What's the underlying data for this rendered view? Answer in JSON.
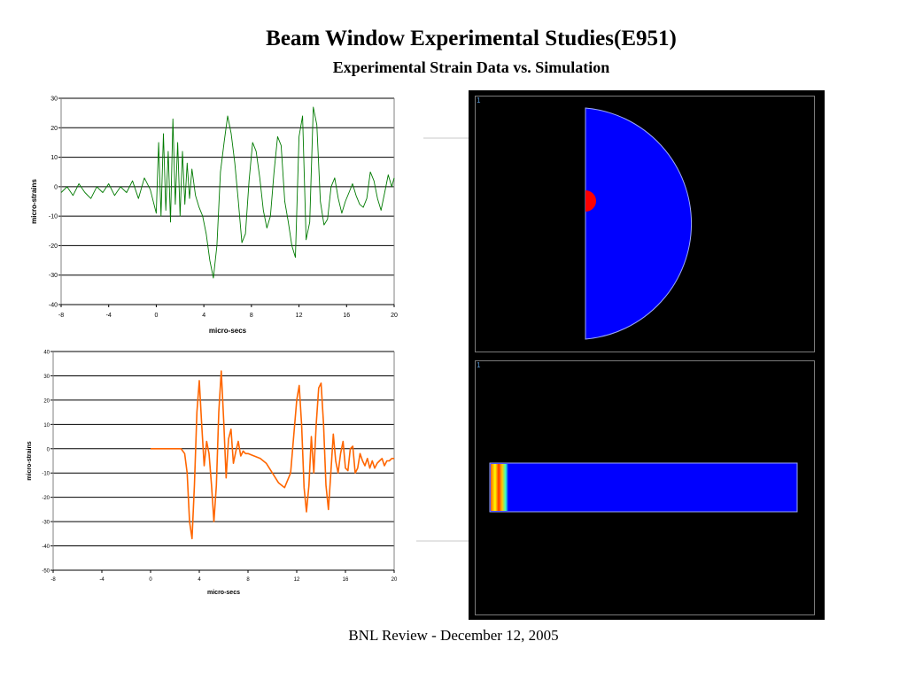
{
  "header": {
    "title": "Beam Window Experimental Studies(E951)",
    "subtitle": "Experimental Strain Data vs. Simulation"
  },
  "footer": {
    "text": "BNL Review - December 12, 2005"
  },
  "simulation": {
    "viewport1_label": "1",
    "viewport2_label": "1",
    "colors": {
      "background": "#000000",
      "body": "#0000ff",
      "hotspot": "#ff0000",
      "frame": "#7a7a7a"
    }
  },
  "chart_data": [
    {
      "type": "line",
      "xlabel": "micro-secs",
      "ylabel": "micro-strains",
      "xlim": [
        -8,
        20
      ],
      "ylim": [
        -40,
        30
      ],
      "xticks": [
        "-8",
        "-4",
        "0",
        "4",
        "8",
        "12",
        "16",
        "20"
      ],
      "yticks": [
        "30",
        "20",
        "10",
        "0",
        "-10",
        "-20",
        "-30",
        "-40"
      ],
      "grid": "horizontal",
      "color": "#007a00",
      "series": [
        {
          "x": [
            -8,
            -7.5,
            -7,
            -6.5,
            -6,
            -5.5,
            -5,
            -4.5,
            -4,
            -3.5,
            -3,
            -2.5,
            -2,
            -1.5,
            -1,
            -0.5,
            0,
            0.2,
            0.4,
            0.6,
            0.8,
            1,
            1.2,
            1.4,
            1.6,
            1.8,
            2,
            2.2,
            2.4,
            2.6,
            2.8,
            3,
            3.3,
            3.6,
            3.9,
            4.2,
            4.5,
            4.8,
            5.1,
            5.4,
            5.7,
            6,
            6.3,
            6.6,
            6.9,
            7.2,
            7.5,
            7.8,
            8.1,
            8.4,
            8.7,
            9,
            9.3,
            9.6,
            9.9,
            10.2,
            10.5,
            10.8,
            11.1,
            11.4,
            11.7,
            12,
            12.3,
            12.6,
            12.9,
            13.2,
            13.5,
            13.8,
            14.1,
            14.4,
            14.7,
            15,
            15.3,
            15.6,
            15.9,
            16.2,
            16.5,
            16.8,
            17.1,
            17.4,
            17.7,
            18,
            18.3,
            18.6,
            18.9,
            19.2,
            19.5,
            19.8,
            20
          ],
          "y": [
            -2,
            0,
            -3,
            1,
            -2,
            -4,
            0,
            -2,
            1,
            -3,
            0,
            -2,
            2,
            -4,
            3,
            -1,
            -9,
            15,
            -10,
            18,
            -8,
            12,
            -12,
            23,
            -6,
            15,
            -10,
            12,
            -6,
            8,
            -4,
            6,
            -3,
            -7,
            -10,
            -16,
            -25,
            -31,
            -20,
            5,
            15,
            24,
            18,
            8,
            -5,
            -19,
            -16,
            2,
            15,
            12,
            3,
            -8,
            -14,
            -10,
            5,
            17,
            14,
            -5,
            -12,
            -20,
            -24,
            17,
            24,
            -18,
            -12,
            27,
            21,
            -5,
            -13,
            -11,
            0,
            3,
            -4,
            -9,
            -5,
            -2,
            1,
            -3,
            -6,
            -7,
            -4,
            5,
            2,
            -4,
            -8,
            -2,
            4,
            0,
            3
          ]
        }
      ]
    },
    {
      "type": "line",
      "xlabel": "micro-secs",
      "ylabel": "micro-strains",
      "xlim": [
        -8,
        20
      ],
      "ylim": [
        -50,
        40
      ],
      "xticks": [
        "-8",
        "-4",
        "0",
        "4",
        "8",
        "12",
        "16",
        "20"
      ],
      "yticks": [
        "40",
        "30",
        "20",
        "10",
        "0",
        "-10",
        "-20",
        "-30",
        "-40",
        "-50"
      ],
      "grid": "horizontal",
      "color": "#ff6600",
      "series": [
        {
          "x": [
            0,
            1,
            2,
            2.5,
            2.8,
            3,
            3.2,
            3.4,
            3.6,
            3.8,
            4,
            4.2,
            4.4,
            4.6,
            4.8,
            5,
            5.2,
            5.4,
            5.6,
            5.8,
            6,
            6.2,
            6.4,
            6.6,
            6.8,
            7,
            7.2,
            7.4,
            7.6,
            7.8,
            8,
            8.5,
            9,
            9.5,
            10,
            10.5,
            11,
            11.5,
            12,
            12.2,
            12.4,
            12.6,
            12.8,
            13,
            13.2,
            13.4,
            13.6,
            13.8,
            14,
            14.2,
            14.4,
            14.6,
            14.8,
            15,
            15.2,
            15.4,
            15.6,
            15.8,
            16,
            16.2,
            16.4,
            16.6,
            16.8,
            17,
            17.2,
            17.4,
            17.6,
            17.8,
            18,
            18.2,
            18.4,
            18.6,
            18.8,
            19,
            19.2,
            19.4,
            19.6,
            19.8,
            20
          ],
          "y": [
            0,
            0,
            0,
            0,
            -2,
            -10,
            -30,
            -37,
            -15,
            15,
            28,
            10,
            -7,
            3,
            -2,
            -15,
            -30,
            -15,
            15,
            32,
            12,
            -12,
            4,
            8,
            -6,
            -1,
            3,
            -3,
            -1,
            -2,
            -2,
            -3,
            -4,
            -6,
            -10,
            -14,
            -16,
            -10,
            20,
            26,
            10,
            -16,
            -26,
            -15,
            5,
            -10,
            10,
            25,
            27,
            10,
            -15,
            -25,
            -10,
            6,
            -5,
            -10,
            -2,
            3,
            -8,
            -9,
            0,
            1,
            -10,
            -8,
            -2,
            -5,
            -7,
            -4,
            -8,
            -5,
            -8,
            -6,
            -5,
            -4,
            -7,
            -5,
            -5,
            -4,
            -4
          ]
        }
      ]
    }
  ]
}
